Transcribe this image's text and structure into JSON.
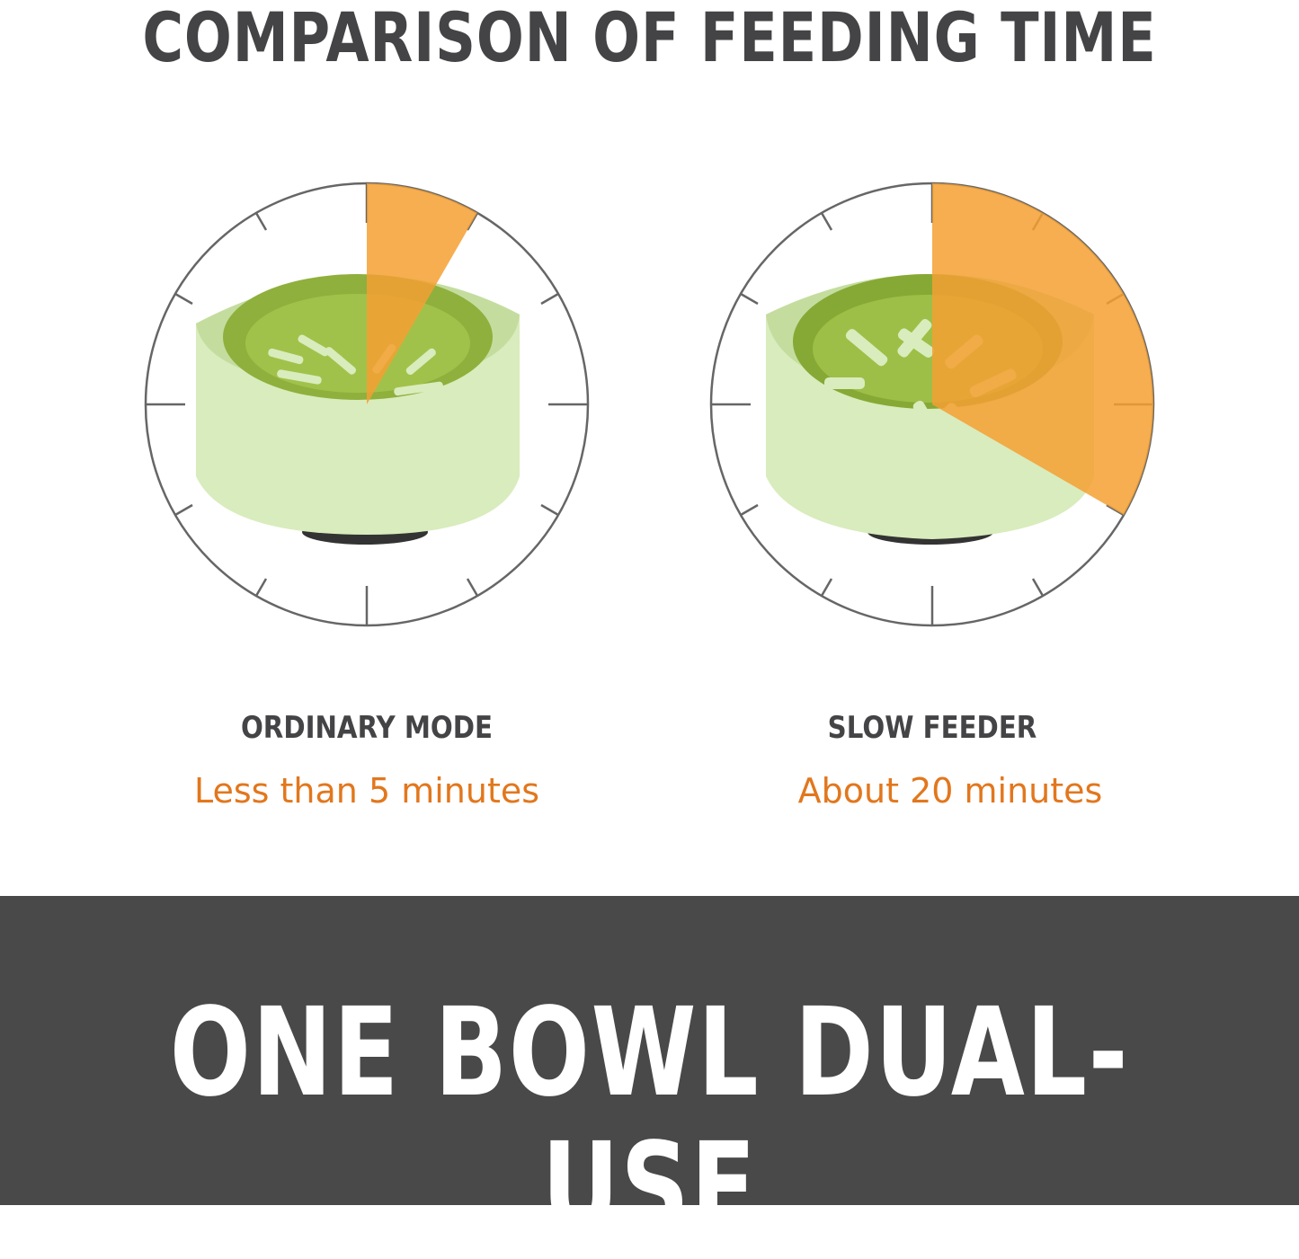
{
  "header": {
    "title": "COMPARISON OF FEEDING TIME"
  },
  "modes": [
    {
      "label": "ORDINARY MODE",
      "time": "Less than 5 minutes",
      "fraction": 0.0833
    },
    {
      "label": "SLOW FEEDER",
      "time": "About 20 minutes",
      "fraction": 0.3333
    }
  ],
  "banner": {
    "text": "ONE BOWL DUAL-USE"
  },
  "colors": {
    "accent_orange": "#f5a033",
    "time_text": "#e2771d",
    "dark_gray": "#4a4949",
    "bowl_outer": "#d7ecb9",
    "bowl_inner": "#8fb33a"
  }
}
